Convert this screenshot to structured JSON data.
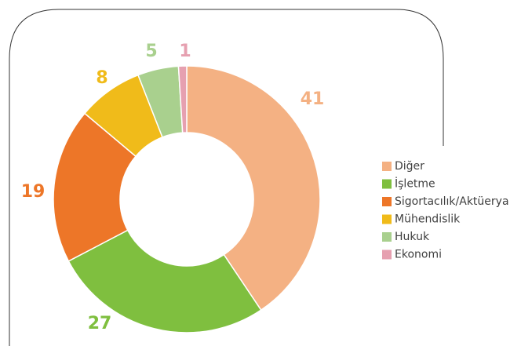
{
  "chart_data": {
    "type": "donut",
    "categories": [
      "Diğer",
      "İşletme",
      "Sigortacılık/Aktüerya",
      "Mühendislik",
      "Hukuk",
      "Ekonomi"
    ],
    "values": [
      41,
      27,
      19,
      8,
      5,
      1
    ],
    "colors": [
      "#f4b183",
      "#7fbf3f",
      "#ed7628",
      "#f0bb1a",
      "#a9d08e",
      "#e6a0b0"
    ],
    "legend": "right"
  }
}
